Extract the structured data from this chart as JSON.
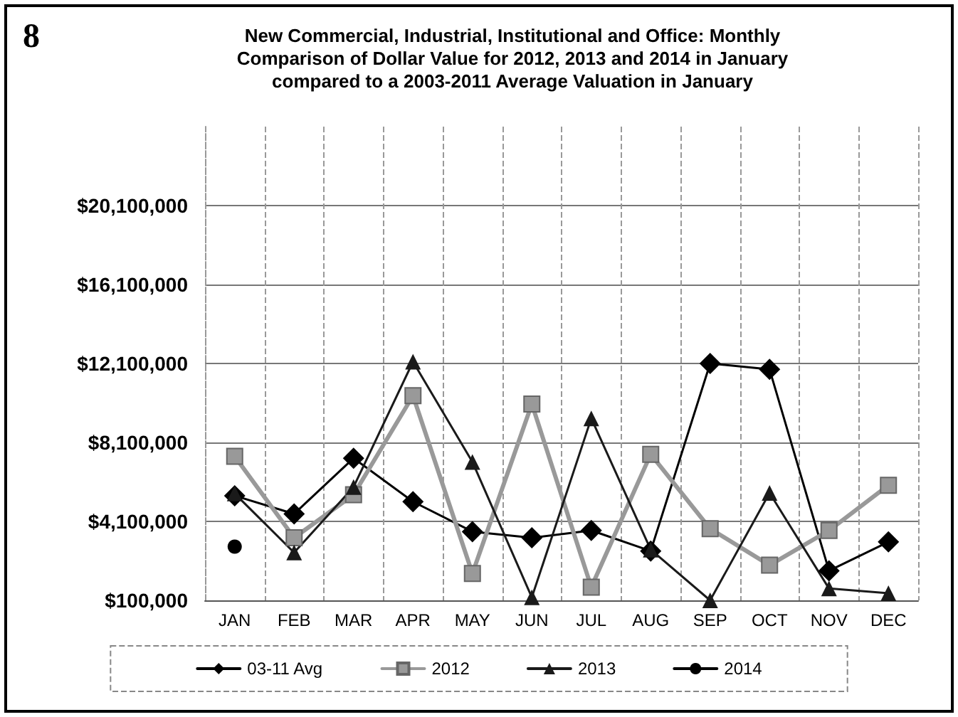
{
  "chart_data": {
    "type": "line",
    "title": "New Commercial, Industrial, Institutional and Office: Monthly\nComparison of Dollar Value for 2012, 2013 and 2014 in January\ncompared to a 2003-2011 Average Valuation in January",
    "annotations": [
      "8"
    ],
    "categories": [
      "JAN",
      "FEB",
      "MAR",
      "APR",
      "MAY",
      "JUN",
      "JUL",
      "AUG",
      "SEP",
      "OCT",
      "NOV",
      "DEC"
    ],
    "series": [
      {
        "name": "03-11 Avg",
        "color": "#000000",
        "marker": "diamond",
        "values": [
          5400000,
          4480000,
          7300000,
          5100000,
          3580000,
          3270000,
          3640000,
          2600000,
          12100000,
          11800000,
          1600000,
          3060000
        ]
      },
      {
        "name": "2012",
        "color": "#999999",
        "marker": "square",
        "values": [
          7400000,
          3270000,
          5450000,
          10470000,
          1460000,
          10050000,
          770000,
          7500000,
          3730000,
          1880000,
          3640000,
          5930000
        ]
      },
      {
        "name": "2013",
        "color": "#1a1a1a",
        "marker": "triangle",
        "values": [
          5510000,
          2520000,
          5840000,
          12190000,
          7110000,
          250000,
          9320000,
          2670000,
          100000,
          5540000,
          700000,
          460000
        ]
      },
      {
        "name": "2014",
        "color": "#000000",
        "marker": "circle",
        "values": [
          2820000,
          null,
          null,
          null,
          null,
          null,
          null,
          null,
          null,
          null,
          null,
          null
        ]
      }
    ],
    "ylim": [
      100000,
      24100000
    ],
    "yticks": [
      {
        "value": 100000,
        "label": "$100,000"
      },
      {
        "value": 4100000,
        "label": "$4,100,000"
      },
      {
        "value": 8100000,
        "label": "$8,100,000"
      },
      {
        "value": 12100000,
        "label": "$12,100,000"
      },
      {
        "value": 16100000,
        "label": "$16,100,000"
      },
      {
        "value": 20100000,
        "label": "$20,100,000"
      }
    ],
    "grid": true,
    "legend": "bottom",
    "line_style": "solid"
  }
}
